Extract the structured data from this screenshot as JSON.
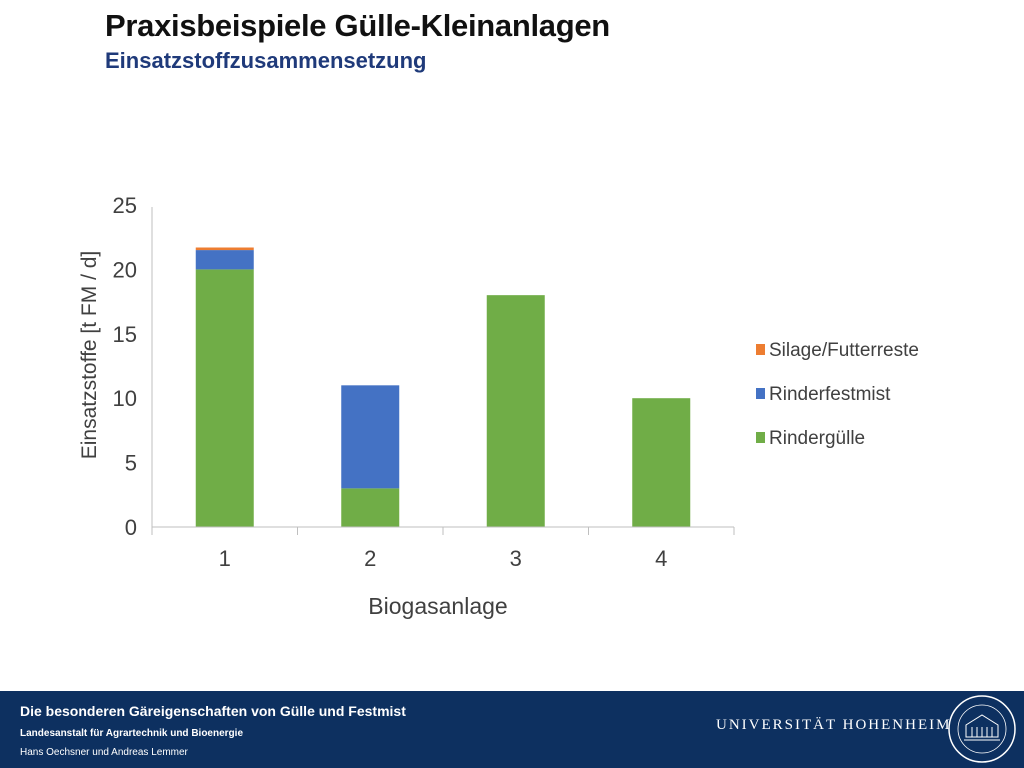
{
  "slide": {
    "title": "Praxisbeispiele Gülle-Kleinanlagen",
    "subtitle": "Einsatzstoffzusammensetzung"
  },
  "chart_data": {
    "type": "bar",
    "stacked": true,
    "categories": [
      "1",
      "2",
      "3",
      "4"
    ],
    "series": [
      {
        "name": "Rindergülle",
        "color": "#70ad47",
        "values": [
          20,
          3,
          18,
          10
        ]
      },
      {
        "name": "Rinderfestmist",
        "color": "#4472c4",
        "values": [
          1.5,
          8,
          0,
          0
        ]
      },
      {
        "name": "Silage/Futterreste",
        "color": "#ed7d31",
        "values": [
          0.2,
          0,
          0,
          0
        ]
      }
    ],
    "title": "",
    "xlabel": "Biogasanlage",
    "ylabel": "Einsatzstoffe  [t FM / d]",
    "ylim": [
      0,
      25
    ],
    "yticks": [
      0,
      5,
      10,
      15,
      20,
      25
    ],
    "legend_position": "right",
    "legend_order": [
      "Silage/Futterreste",
      "Rinderfestmist",
      "Rindergülle"
    ],
    "grid": false
  },
  "footer": {
    "title": "Die besonderen Gäreigenschaften von Gülle und Festmist",
    "institute": "Landesanstalt für Agrartechnik und Bioenergie",
    "authors": "Hans Oechsner  und  Andreas Lemmer",
    "university": "UNIVERSITÄT HOHENHEIM",
    "seal_text": "UNIVERSITÄT HOHENHEIM 1818",
    "seal_icon": "university-seal-icon"
  }
}
